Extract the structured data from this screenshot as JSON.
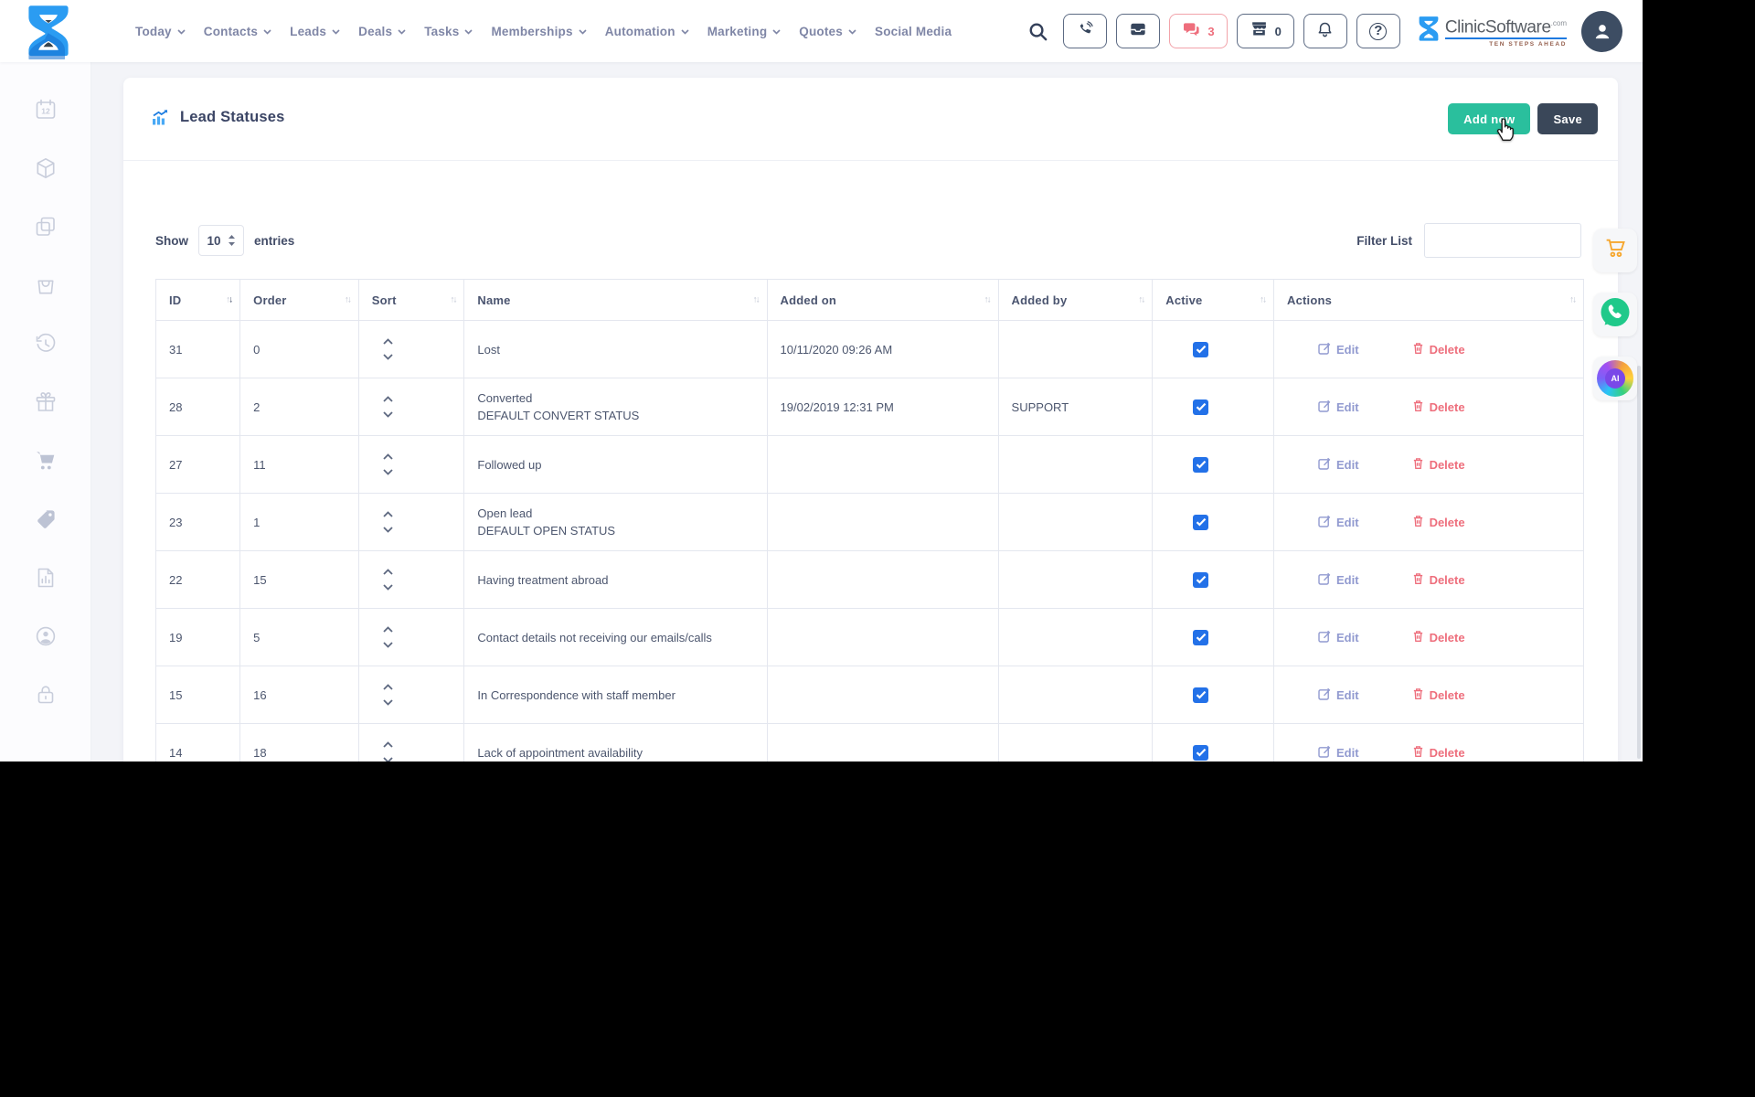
{
  "topbar": {
    "nav": [
      {
        "label": "Today",
        "dropdown": true
      },
      {
        "label": "Contacts",
        "dropdown": true
      },
      {
        "label": "Leads",
        "dropdown": true
      },
      {
        "label": "Deals",
        "dropdown": true
      },
      {
        "label": "Tasks",
        "dropdown": true
      },
      {
        "label": "Memberships",
        "dropdown": true
      },
      {
        "label": "Automation",
        "dropdown": true
      },
      {
        "label": "Marketing",
        "dropdown": true
      },
      {
        "label": "Quotes",
        "dropdown": true
      },
      {
        "label": "Social Media",
        "dropdown": false
      }
    ],
    "icons": [
      "search-icon",
      "phone-icon",
      "inbox-icon",
      "chat-icon",
      "store-icon",
      "bell-icon",
      "help-icon"
    ],
    "chat_badge": "3",
    "store_badge": "0",
    "help_glyph": "?",
    "brand": {
      "name": "ClinicSoftware",
      "tld": ".com",
      "tagline": "TEN STEPS AHEAD"
    }
  },
  "page": {
    "title": "Lead Statuses",
    "add_button": "Add new",
    "save_button": "Save",
    "show_label": "Show",
    "entries_value": "10",
    "entries_label": "entries",
    "filter_label": "Filter List",
    "filter_value": ""
  },
  "table": {
    "columns": [
      "ID",
      "Order",
      "Sort",
      "Name",
      "Added on",
      "Added by",
      "Active",
      "Actions"
    ],
    "sorted": {
      "column": "ID",
      "direction": "desc"
    },
    "edit_label": "Edit",
    "delete_label": "Delete",
    "rows": [
      {
        "id": "31",
        "order": "0",
        "name": "Lost",
        "name2": "",
        "added_on": "10/11/2020 09:26 AM",
        "added_by": "",
        "active": true
      },
      {
        "id": "28",
        "order": "2",
        "name": "Converted",
        "name2": "DEFAULT CONVERT STATUS",
        "added_on": "19/02/2019 12:31 PM",
        "added_by": "SUPPORT",
        "active": true
      },
      {
        "id": "27",
        "order": "11",
        "name": "Followed up",
        "name2": "",
        "added_on": "",
        "added_by": "",
        "active": true
      },
      {
        "id": "23",
        "order": "1",
        "name": "Open lead",
        "name2": "DEFAULT OPEN STATUS",
        "added_on": "",
        "added_by": "",
        "active": true
      },
      {
        "id": "22",
        "order": "15",
        "name": "Having treatment abroad",
        "name2": "",
        "added_on": "",
        "added_by": "",
        "active": true
      },
      {
        "id": "19",
        "order": "5",
        "name": "Contact details not receiving our emails/calls",
        "name2": "",
        "added_on": "",
        "added_by": "",
        "active": true
      },
      {
        "id": "15",
        "order": "16",
        "name": "In Correspondence with staff member",
        "name2": "",
        "added_on": "",
        "added_by": "",
        "active": true
      },
      {
        "id": "14",
        "order": "18",
        "name": "Lack of appointment availability",
        "name2": "",
        "added_on": "",
        "added_by": "",
        "active": true
      }
    ]
  },
  "sidebar": {
    "items": [
      "calendar",
      "package",
      "copy",
      "shopping-bag",
      "history",
      "gift",
      "cart",
      "tag",
      "report",
      "user-circle",
      "lock"
    ],
    "calendar_label": "12"
  },
  "floating": {
    "items": [
      "cart",
      "whatsapp",
      "ai"
    ],
    "ai_label": "AI"
  },
  "colors": {
    "accent_green": "#2abf9d",
    "dark_navy": "#3a4759",
    "nav_grey": "#7f86a6",
    "badge_red": "#ee6e7c",
    "edit_lavender": "#919ad0",
    "delete_salmon": "#ee6e7c",
    "checkbox_blue": "#2371e8",
    "brand_blue": "#1f7ae0",
    "cart_orange": "#f6a72e",
    "whatsapp_green": "#20c98a",
    "table_border": "#e4e7ef"
  }
}
